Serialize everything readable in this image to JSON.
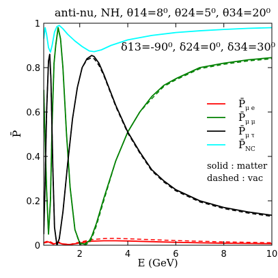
{
  "chart_data": {
    "type": "line",
    "title": "anti-nu, NH, θ14=8⁰, θ24=5⁰, θ34=20⁰",
    "subtitle": "δ13=-90⁰, δ24=0⁰, δ34=30⁰",
    "xlabel": "E (GeV)",
    "ylabel": "P̄",
    "xlim": [
      0.5,
      10
    ],
    "ylim": [
      0,
      1
    ],
    "xticks": [
      "2",
      "4",
      "6",
      "8",
      "10"
    ],
    "yticks": [
      "0",
      "0.2",
      "0.4",
      "0.6",
      "0.8",
      "1"
    ],
    "grid": false,
    "legend_position": "right",
    "legend": [
      {
        "label": "P̄",
        "sub": "μ e",
        "color": "#ff0000"
      },
      {
        "label": "P̄",
        "sub": "μ μ",
        "color": "#008000"
      },
      {
        "label": "P̄",
        "sub": "μ τ",
        "color": "#000000"
      },
      {
        "label": "P̄",
        "sub": "NC",
        "color": "#00ffff"
      }
    ],
    "notes": [
      "solid : matter",
      "dashed : vac"
    ],
    "series": [
      {
        "channel": "mu-e",
        "style": "solid",
        "color": "#ff0000",
        "x": [
          0.5,
          0.7,
          0.9,
          1.1,
          1.3,
          1.6,
          2.0,
          2.5,
          3.0,
          3.5,
          4.0,
          5.0,
          6.0,
          7.0,
          8.0,
          9.0,
          10.0
        ],
        "y": [
          0.01,
          0.015,
          0.005,
          0.012,
          0.005,
          0.003,
          0.01,
          0.018,
          0.02,
          0.02,
          0.019,
          0.016,
          0.013,
          0.011,
          0.009,
          0.008,
          0.007
        ]
      },
      {
        "channel": "mu-e",
        "style": "dashed",
        "color": "#ff0000",
        "x": [
          0.5,
          0.7,
          0.9,
          1.1,
          1.3,
          1.6,
          2.0,
          2.5,
          3.0,
          3.5,
          4.0,
          5.0,
          6.0,
          7.0,
          8.0,
          9.0,
          10.0
        ],
        "y": [
          0.012,
          0.02,
          0.008,
          0.015,
          0.006,
          0.004,
          0.014,
          0.025,
          0.03,
          0.031,
          0.029,
          0.025,
          0.021,
          0.018,
          0.015,
          0.013,
          0.011
        ]
      },
      {
        "channel": "mu-mu",
        "style": "solid",
        "color": "#008000",
        "x": [
          0.5,
          0.55,
          0.62,
          0.7,
          0.78,
          0.85,
          0.93,
          1.0,
          1.1,
          1.2,
          1.3,
          1.45,
          1.6,
          1.8,
          2.0,
          2.2,
          2.4,
          2.5,
          2.7,
          3.0,
          3.5,
          4.0,
          4.5,
          5.0,
          5.5,
          6.0,
          7.0,
          8.0,
          9.0,
          10.0
        ],
        "y": [
          0.7,
          0.5,
          0.25,
          0.05,
          0.2,
          0.55,
          0.82,
          0.9,
          0.98,
          0.93,
          0.8,
          0.5,
          0.26,
          0.07,
          0.01,
          0.005,
          0.02,
          0.04,
          0.1,
          0.21,
          0.38,
          0.51,
          0.6,
          0.67,
          0.72,
          0.75,
          0.8,
          0.82,
          0.835,
          0.845
        ]
      },
      {
        "channel": "mu-mu",
        "style": "dashed",
        "color": "#008000",
        "x": [
          0.5,
          0.55,
          0.62,
          0.7,
          0.78,
          0.85,
          0.93,
          1.0,
          1.1,
          1.2,
          1.3,
          1.45,
          1.6,
          1.8,
          2.0,
          2.2,
          2.4,
          2.5,
          2.7,
          3.0,
          3.5,
          4.0,
          4.5,
          5.0,
          5.5,
          6.0,
          7.0,
          8.0,
          9.0,
          10.0
        ],
        "y": [
          0.7,
          0.5,
          0.25,
          0.05,
          0.2,
          0.55,
          0.82,
          0.9,
          0.98,
          0.93,
          0.8,
          0.5,
          0.26,
          0.07,
          0.005,
          0.0,
          0.012,
          0.03,
          0.09,
          0.2,
          0.38,
          0.51,
          0.6,
          0.66,
          0.715,
          0.745,
          0.795,
          0.815,
          0.83,
          0.84
        ]
      },
      {
        "channel": "mu-tau",
        "style": "solid",
        "color": "#000000",
        "x": [
          0.5,
          0.55,
          0.62,
          0.7,
          0.75,
          0.8,
          0.88,
          0.95,
          1.05,
          1.15,
          1.3,
          1.5,
          1.7,
          1.9,
          2.1,
          2.3,
          2.5,
          2.6,
          2.8,
          3.0,
          3.5,
          4.0,
          4.5,
          5.0,
          5.5,
          6.0,
          7.0,
          8.0,
          9.0,
          10.0
        ],
        "y": [
          0.05,
          0.25,
          0.6,
          0.83,
          0.86,
          0.75,
          0.35,
          0.08,
          0.0,
          0.03,
          0.15,
          0.37,
          0.57,
          0.71,
          0.8,
          0.84,
          0.855,
          0.85,
          0.82,
          0.77,
          0.63,
          0.51,
          0.42,
          0.34,
          0.29,
          0.25,
          0.2,
          0.17,
          0.15,
          0.135
        ]
      },
      {
        "channel": "mu-tau",
        "style": "dashed",
        "color": "#000000",
        "x": [
          0.5,
          0.55,
          0.62,
          0.7,
          0.75,
          0.8,
          0.88,
          0.95,
          1.05,
          1.15,
          1.3,
          1.5,
          1.7,
          1.9,
          2.1,
          2.3,
          2.5,
          2.6,
          2.8,
          3.0,
          3.5,
          4.0,
          4.5,
          5.0,
          5.5,
          6.0,
          7.0,
          8.0,
          9.0,
          10.0
        ],
        "y": [
          0.05,
          0.25,
          0.6,
          0.83,
          0.86,
          0.75,
          0.35,
          0.08,
          0.0,
          0.03,
          0.15,
          0.37,
          0.57,
          0.71,
          0.8,
          0.835,
          0.845,
          0.84,
          0.81,
          0.765,
          0.625,
          0.505,
          0.415,
          0.335,
          0.285,
          0.245,
          0.195,
          0.165,
          0.145,
          0.13
        ]
      },
      {
        "channel": "NC",
        "style": "solid",
        "color": "#00ffff",
        "x": [
          0.5,
          0.56,
          0.62,
          0.7,
          0.78,
          0.85,
          0.95,
          1.05,
          1.15,
          1.3,
          1.5,
          1.8,
          2.1,
          2.4,
          2.6,
          2.9,
          3.3,
          4.0,
          5.0,
          6.0,
          7.0,
          8.0,
          9.0,
          10.0
        ],
        "y": [
          0.93,
          0.98,
          0.95,
          0.89,
          0.87,
          0.9,
          0.96,
          0.985,
          0.99,
          0.975,
          0.95,
          0.92,
          0.895,
          0.875,
          0.872,
          0.88,
          0.9,
          0.925,
          0.945,
          0.958,
          0.966,
          0.972,
          0.977,
          0.98
        ]
      }
    ]
  }
}
